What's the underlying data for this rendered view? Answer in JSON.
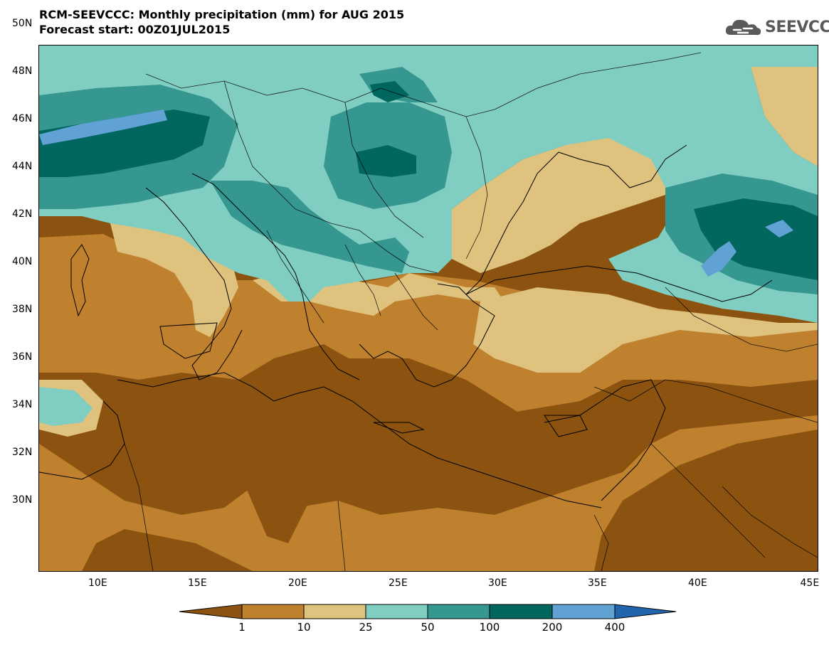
{
  "title": {
    "line1": "RCM-SEEVCCC: Monthly precipitation (mm) for AUG 2015",
    "line2": "Forecast start: 00Z01JUL2015"
  },
  "logo": {
    "text": "SEEVCCC",
    "icon": "cloud-icon"
  },
  "axes": {
    "y_ticks": [
      "50N",
      "48N",
      "46N",
      "44N",
      "42N",
      "40N",
      "38N",
      "36N",
      "34N",
      "32N",
      "30N"
    ],
    "x_ticks": [
      "10E",
      "15E",
      "20E",
      "25E",
      "30E",
      "35E",
      "40E",
      "45E"
    ]
  },
  "legend": {
    "labels": [
      "1",
      "10",
      "25",
      "50",
      "100",
      "200",
      "400"
    ],
    "colors": [
      "#8b530f",
      "#bf812d",
      "#dfc27d",
      "#80cdc1",
      "#35978f",
      "#01665e",
      "#5fa2d3",
      "#2166ac"
    ]
  },
  "colors": {
    "very_dry": "#8b530f",
    "dry": "#bf812d",
    "light": "#dfc27d",
    "moderate": "#80cdc1",
    "wet": "#35978f",
    "very_wet": "#01665e",
    "extreme": "#5fa2d3"
  }
}
